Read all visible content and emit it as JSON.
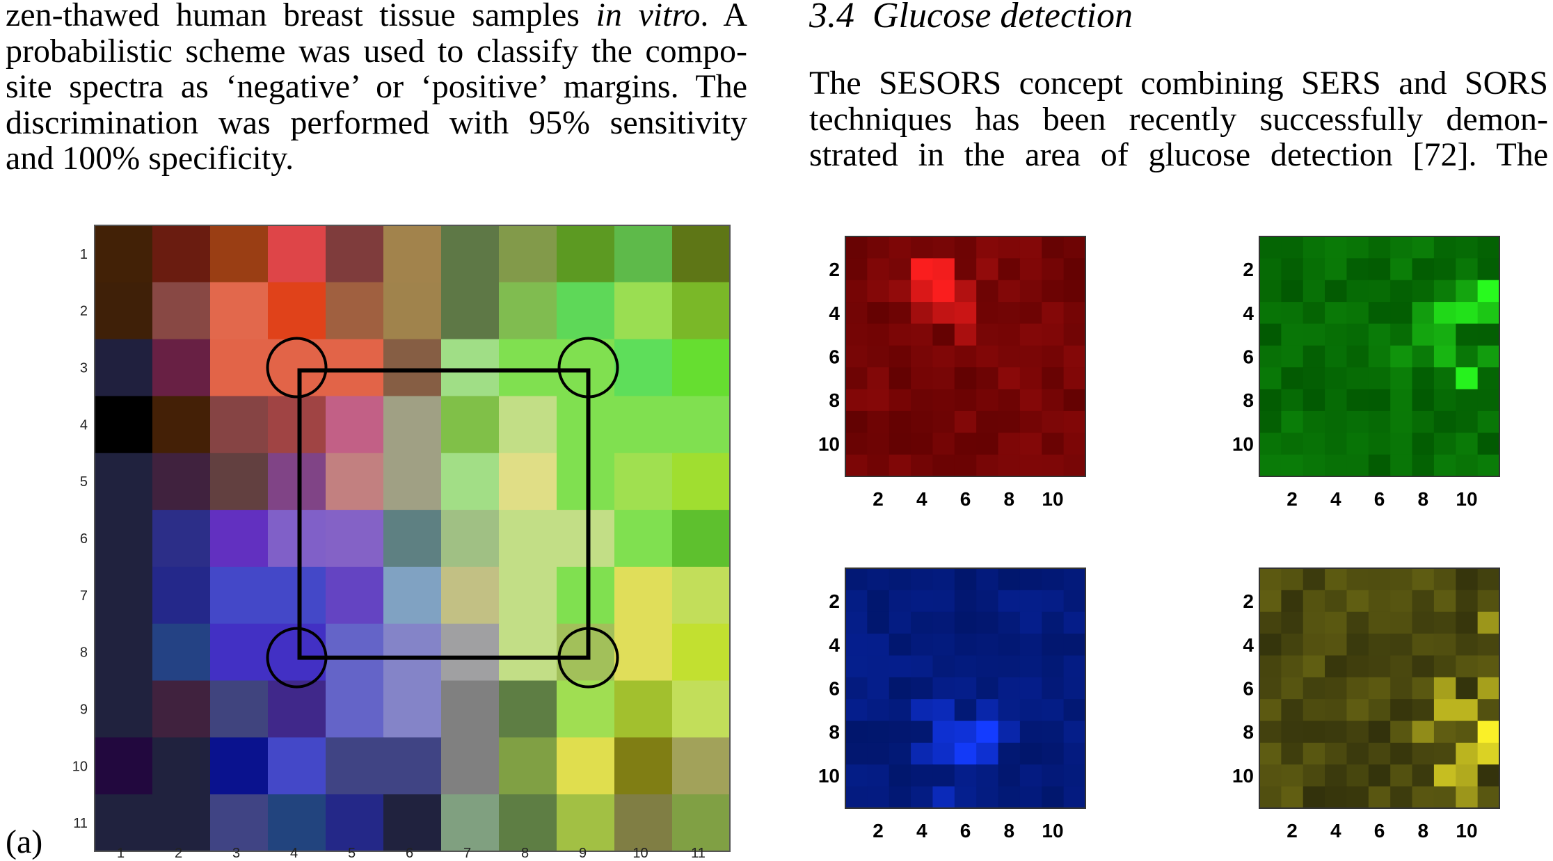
{
  "left_text": {
    "lines": [
      "zen-thawed human breast tissue samples in vitro. A",
      "probabilistic scheme was used to classify the compo-",
      "site spectra as ‘negative’ or ‘positive’ margins. The",
      "discrimination was performed with 95% sensitivity",
      "and 100% specificity."
    ],
    "italic_phrase": "in vitro"
  },
  "right_text": {
    "section_number": "3.4",
    "section_title": "Glucose detection",
    "lines": [
      "The SESORS concept combining SERS and SORS",
      "techniques has been recently successfully demon-",
      "strated in the area of glucose detection [72]. The"
    ]
  },
  "figure_a": {
    "panel_label": "(a)",
    "x_ticks": [
      "1",
      "2",
      "3",
      "4",
      "5",
      "6",
      "7",
      "8",
      "9",
      "10",
      "11"
    ],
    "y_ticks": [
      "1",
      "2",
      "3",
      "4",
      "5",
      "6",
      "7",
      "8",
      "9",
      "10",
      "11"
    ],
    "grid": [
      [
        "#422106",
        "#6a1c10",
        "#9a3e14",
        "#de4548",
        "#7f3c3c",
        "#a2834c",
        "#5e7846",
        "#829a4a",
        "#5c9a22",
        "#5eba4a",
        "#5e7616"
      ],
      [
        "#3f2008",
        "#884844",
        "#e2684c",
        "#e0421a",
        "#a06040",
        "#a0834c",
        "#5e7846",
        "#80bc50",
        "#5ed858",
        "#9ade52",
        "#7ab828"
      ],
      [
        "#20203e",
        "#682044",
        "#e26448",
        "#e26448",
        "#e26448",
        "#865e44",
        "#a0de86",
        "#80e050",
        "#80e050",
        "#5ede5a",
        "#66de30"
      ],
      [
        "#000000",
        "#442006",
        "#864444",
        "#a04444",
        "#c26086",
        "#a0a084",
        "#80c048",
        "#c2de86",
        "#80e050",
        "#80e050",
        "#80e050"
      ],
      [
        "#20223e",
        "#40223e",
        "#624040",
        "#804486",
        "#c28080",
        "#a0a084",
        "#a2de86",
        "#e0de86",
        "#80e050",
        "#a0e050",
        "#a0de30"
      ],
      [
        "#20223e",
        "#2c2e88",
        "#6230c0",
        "#8060c8",
        "#8462c6",
        "#5e8082",
        "#a0c084",
        "#c2de86",
        "#c2de86",
        "#80e050",
        "#5ec02e"
      ],
      [
        "#20223e",
        "#24288a",
        "#4448c8",
        "#4448c8",
        "#6444c2",
        "#80a2c2",
        "#c2c084",
        "#c2de86",
        "#80e050",
        "#e0de5a",
        "#c2de5a"
      ],
      [
        "#20223e",
        "#244284",
        "#4230c4",
        "#4230c4",
        "#6464c8",
        "#8484c8",
        "#a0a0a2",
        "#c2de86",
        "#a2c05a",
        "#e0de5a",
        "#c2e030"
      ],
      [
        "#20223e",
        "#40223e",
        "#40447e",
        "#40288a",
        "#6464c8",
        "#8484c8",
        "#808080",
        "#5e7e44",
        "#a0de52",
        "#a2c02e",
        "#c2de5a"
      ],
      [
        "#22083e",
        "#20223e",
        "#0a128e",
        "#4448c8",
        "#404484",
        "#404484",
        "#808080",
        "#80a044",
        "#e0de4e",
        "#807e14",
        "#a2a25a"
      ],
      [
        "#20223e",
        "#20223e",
        "#404484",
        "#22447e",
        "#242888",
        "#20223e",
        "#80a080",
        "#5e7e44",
        "#a2c044",
        "#807e44",
        "#80a044"
      ]
    ],
    "rectangle_corners": [
      [
        4,
        3
      ],
      [
        9,
        3
      ],
      [
        4,
        8
      ],
      [
        9,
        8
      ]
    ]
  },
  "maps": [
    {
      "color": "red",
      "x_ticks": [
        "2",
        "4",
        "6",
        "8",
        "10"
      ],
      "y_ticks": [
        "2",
        "4",
        "6",
        "8",
        "10"
      ],
      "bg": "#6e0000",
      "hotspots": [
        {
          "col": 3,
          "row": 1,
          "value": 1.0
        },
        {
          "col": 4,
          "row": 1,
          "value": 0.95
        },
        {
          "col": 3,
          "row": 2,
          "value": 0.8
        },
        {
          "col": 4,
          "row": 2,
          "value": 1.0
        },
        {
          "col": 5,
          "row": 2,
          "value": 0.55
        },
        {
          "col": 4,
          "row": 3,
          "value": 0.65
        },
        {
          "col": 5,
          "row": 3,
          "value": 0.7
        },
        {
          "col": 3,
          "row": 3,
          "value": 0.45
        },
        {
          "col": 5,
          "row": 4,
          "value": 0.5
        },
        {
          "col": 2,
          "row": 2,
          "value": 0.35
        },
        {
          "col": 6,
          "row": 1,
          "value": 0.35
        },
        {
          "col": 7,
          "row": 6,
          "value": 0.3
        }
      ]
    },
    {
      "color": "green",
      "x_ticks": [
        "2",
        "4",
        "6",
        "8",
        "10"
      ],
      "y_ticks": [
        "2",
        "4",
        "6",
        "8",
        "10"
      ],
      "bg": "#0c5a0c",
      "hotspots": [
        {
          "col": 10,
          "row": 2,
          "value": 1.0
        },
        {
          "col": 9,
          "row": 3,
          "value": 0.85
        },
        {
          "col": 8,
          "row": 3,
          "value": 0.8
        },
        {
          "col": 10,
          "row": 3,
          "value": 0.7
        },
        {
          "col": 9,
          "row": 6,
          "value": 0.95
        },
        {
          "col": 8,
          "row": 5,
          "value": 0.6
        },
        {
          "col": 7,
          "row": 4,
          "value": 0.5
        },
        {
          "col": 8,
          "row": 4,
          "value": 0.55
        },
        {
          "col": 9,
          "row": 2,
          "value": 0.5
        },
        {
          "col": 7,
          "row": 3,
          "value": 0.45
        },
        {
          "col": 6,
          "row": 5,
          "value": 0.4
        },
        {
          "col": 10,
          "row": 5,
          "value": 0.45
        }
      ]
    },
    {
      "color": "blue",
      "x_ticks": [
        "2",
        "4",
        "6",
        "8",
        "10"
      ],
      "y_ticks": [
        "2",
        "4",
        "6",
        "8",
        "10"
      ],
      "bg": "#0c0c6a",
      "hotspots": [
        {
          "col": 6,
          "row": 7,
          "value": 1.0
        },
        {
          "col": 5,
          "row": 8,
          "value": 0.95
        },
        {
          "col": 4,
          "row": 7,
          "value": 0.7
        },
        {
          "col": 5,
          "row": 7,
          "value": 0.75
        },
        {
          "col": 4,
          "row": 8,
          "value": 0.65
        },
        {
          "col": 6,
          "row": 8,
          "value": 0.7
        },
        {
          "col": 3,
          "row": 6,
          "value": 0.5
        },
        {
          "col": 4,
          "row": 6,
          "value": 0.55
        },
        {
          "col": 6,
          "row": 6,
          "value": 0.45
        },
        {
          "col": 4,
          "row": 10,
          "value": 0.55
        },
        {
          "col": 3,
          "row": 8,
          "value": 0.5
        },
        {
          "col": 7,
          "row": 7,
          "value": 0.45
        }
      ]
    },
    {
      "color": "yellow",
      "x_ticks": [
        "2",
        "4",
        "6",
        "8",
        "10"
      ],
      "y_ticks": [
        "2",
        "4",
        "6",
        "8",
        "10"
      ],
      "bg": "#2a2a0c",
      "hotspots": [
        {
          "col": 10,
          "row": 7,
          "value": 1.0
        },
        {
          "col": 10,
          "row": 8,
          "value": 0.85
        },
        {
          "col": 9,
          "row": 6,
          "value": 0.7
        },
        {
          "col": 8,
          "row": 6,
          "value": 0.7
        },
        {
          "col": 9,
          "row": 8,
          "value": 0.7
        },
        {
          "col": 8,
          "row": 9,
          "value": 0.75
        },
        {
          "col": 9,
          "row": 9,
          "value": 0.65
        },
        {
          "col": 8,
          "row": 5,
          "value": 0.6
        },
        {
          "col": 10,
          "row": 2,
          "value": 0.55
        },
        {
          "col": 10,
          "row": 5,
          "value": 0.6
        },
        {
          "col": 7,
          "row": 7,
          "value": 0.5
        },
        {
          "col": 9,
          "row": 10,
          "value": 0.55
        }
      ]
    }
  ]
}
